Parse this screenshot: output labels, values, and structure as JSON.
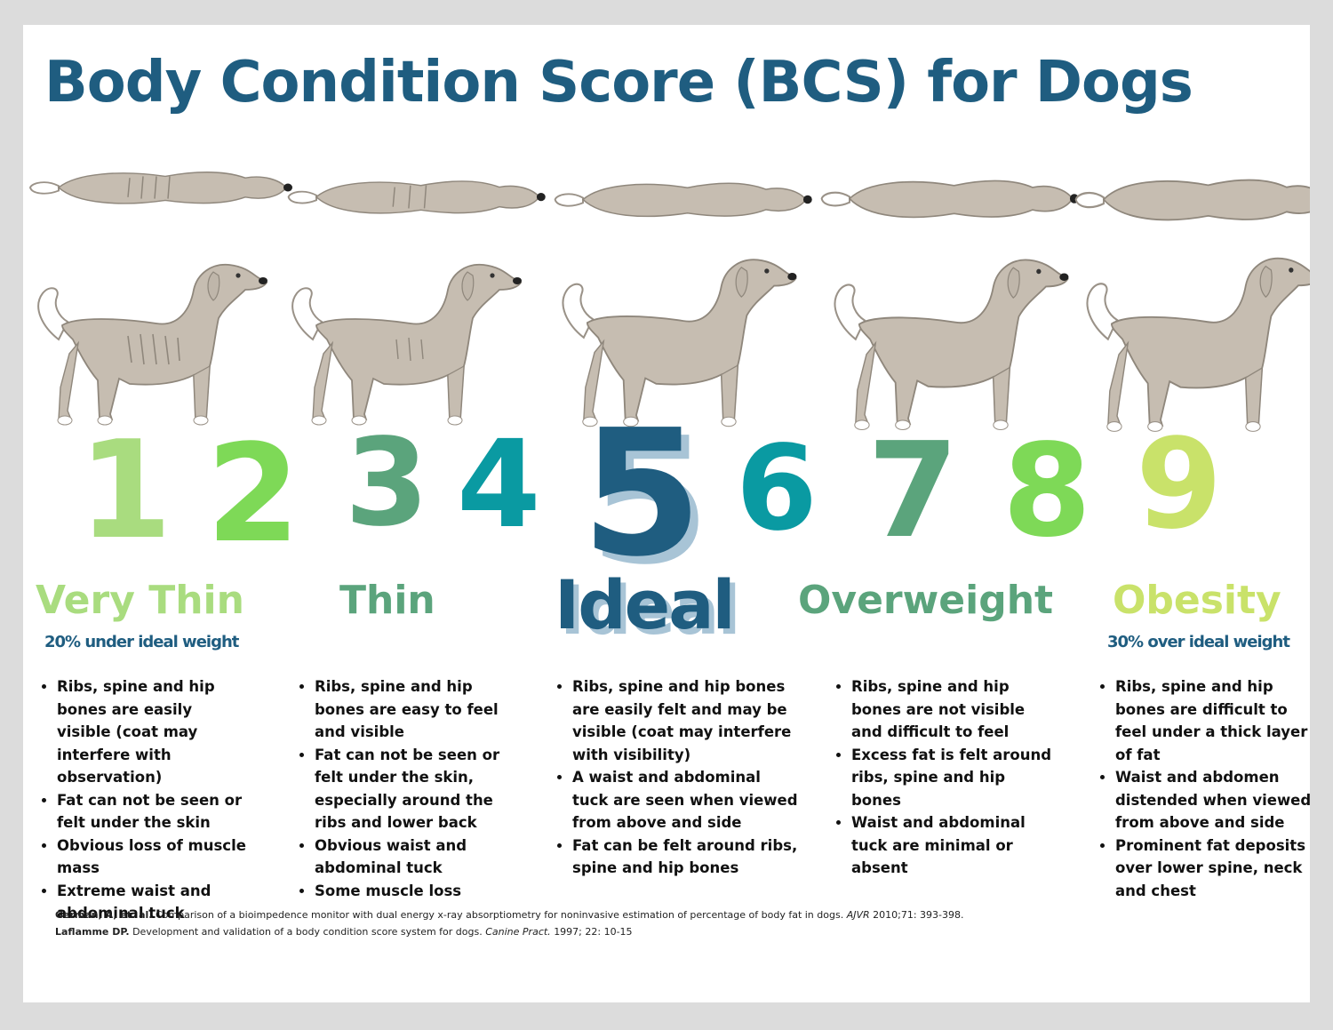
{
  "title": "Body Condition Score (BCS) for Dogs",
  "colors": {
    "title": "#1f5d80",
    "score_1": "#a9dc7f",
    "score_2": "#7ed957",
    "score_3": "#5ba47c",
    "score_4": "#0a9aa2",
    "score_5": "#1f5d80",
    "score_6": "#0a9aa2",
    "score_7": "#5ba47c",
    "score_8": "#7ed957",
    "score_9": "#c9e26a",
    "dog_body": "#c6bdb1",
    "dog_outline": "#8f877c"
  },
  "scores": [
    "1",
    "2",
    "3",
    "4",
    "5",
    "6",
    "7",
    "8",
    "9"
  ],
  "categories": [
    {
      "name": "Very Thin",
      "subtitle": "20% under ideal weight",
      "bullets": [
        "Ribs, spine and hip bones are easily visible (coat may interfere with observation)",
        "Fat can not be seen or felt under the skin",
        "Obvious loss of muscle mass",
        "Extreme waist and abdominal tuck"
      ]
    },
    {
      "name": "Thin",
      "subtitle": "",
      "bullets": [
        "Ribs, spine and hip bones are easy to feel and visible",
        "Fat can not be seen or felt under the skin, especially around the ribs and lower back",
        "Obvious waist and abdominal tuck",
        "Some muscle loss"
      ]
    },
    {
      "name": "Ideal",
      "subtitle": "",
      "bullets": [
        "Ribs, spine and hip bones are easily felt and may be visible (coat may interfere with visibility)",
        "A waist and abdominal tuck are seen when viewed from above and side",
        "Fat can be felt around ribs, spine and hip bones"
      ]
    },
    {
      "name": "Overweight",
      "subtitle": "",
      "bullets": [
        "Ribs, spine and hip bones are not visible and difficult to feel",
        "Excess fat is felt around ribs, spine and hip bones",
        "Waist and abdominal tuck are minimal or absent"
      ]
    },
    {
      "name": "Obesity",
      "subtitle": "30% over ideal weight",
      "bullets": [
        "Ribs, spine and hip bones are difficult to feel under a thick layer of fat",
        "Waist and abdomen distended when viewed from above and side",
        "Prominent fat deposits over lower spine, neck and chest"
      ]
    }
  ],
  "references": [
    {
      "author": "German, A, et. al.",
      "text": "Comparison of a bioimpedence monitor with dual energy x-ray absorptiometry for noninvasive estimation of percentage of body fat in dogs.",
      "journal": "AJVR",
      "details": "2010;71: 393-398."
    },
    {
      "author": "Laflamme DP.",
      "text": "Development and validation of a body condition score system for dogs.",
      "journal": "Canine Pract.",
      "details": "1997; 22: 10-15"
    }
  ]
}
